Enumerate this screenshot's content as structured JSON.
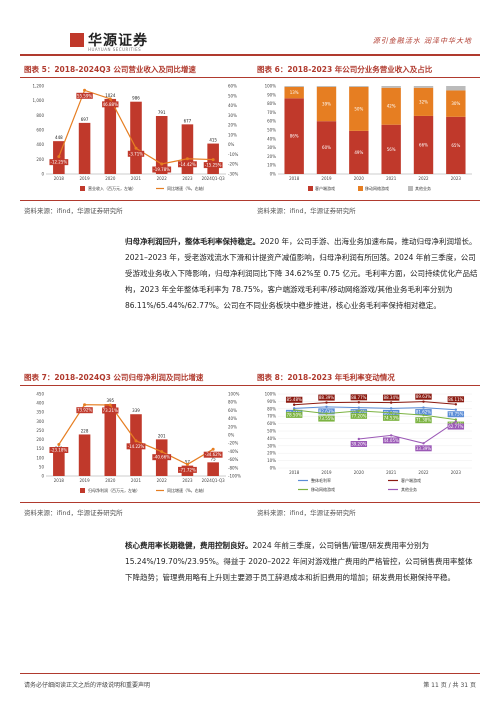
{
  "header": {
    "logo_text": "华源证券",
    "logo_sub": "HUAYUAN SECURITIES",
    "slogan": "源引金融活水  润泽中华大地"
  },
  "fig5": {
    "title": "图表 5：2018-2024Q3 公司营业收入及同比增速",
    "source": "资料来源：ifind，华源证券研究所",
    "chart_data": {
      "type": "bar",
      "categories": [
        "2018",
        "2019",
        "2020",
        "2021",
        "2022",
        "2023",
        "2024Q1-Q3"
      ],
      "series": [
        {
          "name": "营业收入（百万元，左轴）",
          "values": [
            448,
            697,
            1024,
            986,
            791,
            677,
            415
          ]
        },
        {
          "name": "同比增速（%，右轴）",
          "values": [
            -12.25,
            55.59,
            46.88,
            -3.71,
            -19.78,
            -14.42,
            -15.25
          ],
          "type": "line"
        }
      ],
      "ylim_left": [
        0,
        1200
      ],
      "yticks_left": [
        0,
        200,
        400,
        600,
        800,
        1000,
        1200
      ],
      "ylim_right": [
        -30,
        60
      ],
      "yticks_right": [
        "-30%",
        "-20%",
        "-10%",
        "0%",
        "10%",
        "20%",
        "30%",
        "40%",
        "50%",
        "60%"
      ],
      "bar_labels": [
        "448",
        "697",
        "1024",
        "986",
        "791",
        "677",
        "415"
      ],
      "line_labels": [
        "-12.25%",
        "55.59%",
        "46.88%",
        "-3.71%",
        "-19.78%",
        "-14.42%",
        "-15.25%"
      ],
      "legend": [
        "营业收入（百万元，左轴）",
        "同比增速（%，右轴）"
      ]
    }
  },
  "fig6": {
    "title": "图表 6：2018-2023 年公司分业务营业收入及占比",
    "source": "资料来源：ifind，华源证券研究所",
    "chart_data": {
      "type": "bar",
      "stacked": true,
      "categories": [
        "2018",
        "2019",
        "2020",
        "2021",
        "2022",
        "2023"
      ],
      "series": [
        {
          "name": "客户端游戏",
          "values": [
            86,
            60,
            49,
            56,
            66,
            65
          ]
        },
        {
          "name": "移动网络游戏",
          "values": [
            13,
            39,
            50,
            42,
            32,
            30
          ]
        },
        {
          "name": "其他业务",
          "values": [
            1,
            1,
            1,
            2,
            2,
            5
          ]
        }
      ],
      "bar_labels_bottom": [
        "86%",
        "60%",
        "49%",
        "56%",
        "66%",
        "65%"
      ],
      "bar_labels_mid": [
        "13%",
        "39%",
        "50%",
        "42%",
        "32%",
        "30%"
      ],
      "ylim": [
        0,
        100
      ],
      "yticks": [
        "0%",
        "10%",
        "20%",
        "30%",
        "40%",
        "50%",
        "60%",
        "70%",
        "80%",
        "90%",
        "100%"
      ],
      "legend": [
        "客户端游戏",
        "移动网络游戏",
        "其他业务"
      ]
    }
  },
  "para1": {
    "lead": "归母净利润回升，整体毛利率保持稳定。",
    "body": "2020 年，公司手游、出海业务加速布局，推动归母净利润增长。2021–2023 年，受老游戏流水下滑和计提资产减值影响，归母净利润有所回落。2024 年前三季度，公司受游戏业务收入下降影响，归母净利润同比下降 34.62%至 0.75 亿元。毛利率方面，公司持续优化产品结构，2023 年全年整体毛利率为 78.75%，客户端游戏毛利率/移动网络游戏/其他业务毛利率分别为 86.11%/65.44%/62.77%。公司在不同业务板块中稳步推进，核心业务毛利率保持相对稳定。"
  },
  "fig7": {
    "title": "图表 7：2018-2024Q3 公司归母净利润及同比增速",
    "source": "资料来源：ifind，华源证券研究所",
    "chart_data": {
      "type": "bar",
      "categories": [
        "2018",
        "2019",
        "2020",
        "2021",
        "2022",
        "2023",
        "2024Q1-Q3"
      ],
      "series": [
        {
          "name": "归母净利润（百万元，左轴）",
          "values": [
            131,
            228,
            395,
            339,
            201,
            57,
            75
          ]
        },
        {
          "name": "同比增速（%，右轴）",
          "values": [
            -23.18,
            73.92,
            73.21,
            -14.22,
            -40.66,
            -71.72,
            -34.62
          ],
          "type": "line"
        }
      ],
      "ylim_left": [
        0,
        450
      ],
      "yticks_left": [
        0,
        50,
        100,
        150,
        200,
        250,
        300,
        350,
        400,
        450
      ],
      "ylim_right": [
        -100,
        100
      ],
      "yticks_right": [
        "-100%",
        "-80%",
        "-60%",
        "-40%",
        "-20%",
        "0%",
        "20%",
        "40%",
        "60%",
        "80%",
        "100%"
      ],
      "bar_labels": [
        "131",
        "228",
        "395",
        "339",
        "201",
        "57",
        "75"
      ],
      "line_labels": [
        "-23.18%",
        "73.92%",
        "73.21%",
        "-14.22%",
        "-40.66%",
        "-71.72%",
        "-34.62%"
      ],
      "legend": [
        "归母净利润（百万元，左轴）",
        "同比增速（%，右轴）"
      ]
    }
  },
  "fig8": {
    "title": "图表 8：2018-2023 年毛利率变动情况",
    "source": "资料来源：ifind，华源证券研究所",
    "chart_data": {
      "type": "line",
      "categories": [
        "2018",
        "2019",
        "2020",
        "2021",
        "2022",
        "2023"
      ],
      "series": [
        {
          "name": "整体毛利率",
          "values": [
            80.61,
            82.63,
            81.56,
            80.6,
            81.62,
            78.75
          ]
        },
        {
          "name": "客户端游戏",
          "values": [
            85.48,
            88.39,
            88.77,
            88.34,
            89.63,
            86.11
          ]
        },
        {
          "name": "移动网络游戏",
          "values": [
            78.5,
            73.55,
            77.2,
            74.53,
            71.38,
            65.44
          ]
        },
        {
          "name": "其他业务",
          "values": [
            null,
            null,
            39.2,
            44.05,
            33.39,
            62.77
          ]
        }
      ],
      "point_labels": {
        "整体毛利率": [
          "80.61%",
          "82.63%",
          "81.56%",
          "80.60%",
          "81.62%",
          "78.75%"
        ],
        "客户端游戏": [
          "85.48%",
          "88.39%",
          "88.77%",
          "88.34%",
          "89.63%",
          "86.11%"
        ],
        "移动网络游戏": [
          "78.50%",
          "73.55%",
          "77.20%",
          "74.53%",
          "71.38%",
          "65.44%"
        ],
        "其他业务": [
          "",
          "",
          "39.20%",
          "44.05%",
          "33.39%",
          "62.77%"
        ]
      },
      "ylim": [
        0,
        100
      ],
      "yticks": [
        "0%",
        "10%",
        "20%",
        "30%",
        "40%",
        "50%",
        "60%",
        "70%",
        "80%",
        "90%",
        "100%"
      ],
      "legend": [
        "整体毛利率",
        "客户端游戏",
        "移动网络游戏",
        "其他业务"
      ]
    }
  },
  "para2": {
    "lead": "核心费用率长期稳健，费用控制良好。",
    "body": "2024 年前三季度，公司销售/管理/研发费用率分别为 15.24%/19.70%/23.95%。得益于 2020–2022 年间对游戏推广费用的严格管控，公司销售费用率整体下降趋势；管理费用略有上升则主要源于员工辞退成本和折旧费用的增加；研发费用长期保持平稳。"
  },
  "footer": {
    "disclaimer": "请务必仔细阅读正文之后的评级说明和重要声明",
    "page": "第 11 页 / 共 31 页"
  },
  "colors": {
    "red": "#c0392b",
    "orange": "#e67e22",
    "dark": "#8b1a10",
    "grey": "#bbbbbb",
    "blue": "#5b8dd6",
    "green": "#7cb342",
    "purple": "#9b59b6"
  }
}
